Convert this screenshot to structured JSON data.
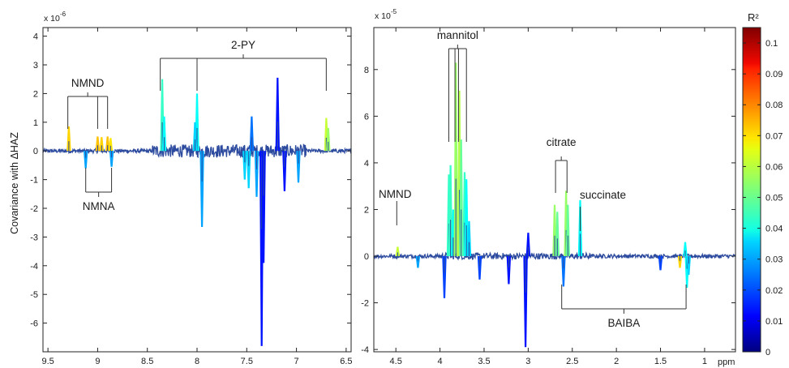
{
  "chart_data": [
    {
      "type": "line",
      "panel": "left",
      "ylabel": "Covariance with ΔHAZ",
      "y_scale_label": "x 10",
      "y_scale_exponent": "-6",
      "xlim": [
        9.55,
        6.45
      ],
      "ylim": [
        -7,
        4.3
      ],
      "x_reversed": true,
      "grid": false,
      "x_ticks": [
        9.5,
        9,
        8.5,
        8,
        7.5,
        7,
        6.5
      ],
      "x_tick_labels": [
        "9.5",
        "9",
        "8.5",
        "8",
        "7.5",
        "7",
        "6.5"
      ],
      "y_ticks": [
        -6,
        -5,
        -4,
        -3,
        -2,
        -1,
        0,
        1,
        2,
        3,
        4
      ],
      "y_tick_labels": [
        "-6",
        "-5",
        "-4",
        "-3",
        "-2",
        "-1",
        "0",
        "1",
        "2",
        "3",
        "4"
      ],
      "color_by": "R²",
      "peaks": [
        {
          "x": 9.29,
          "y": 0.85,
          "r2": 0.07
        },
        {
          "x": 9.0,
          "y": 0.5,
          "r2": 0.072
        },
        {
          "x": 8.96,
          "y": 0.48,
          "r2": 0.07
        },
        {
          "x": 8.9,
          "y": 0.5,
          "r2": 0.072
        },
        {
          "x": 8.87,
          "y": 0.45,
          "r2": 0.068
        },
        {
          "x": 9.12,
          "y": -0.6,
          "r2": 0.03
        },
        {
          "x": 8.86,
          "y": -0.55,
          "r2": 0.03
        },
        {
          "x": 8.35,
          "y": 2.5,
          "r2": 0.045
        },
        {
          "x": 8.33,
          "y": 1.2,
          "r2": 0.04
        },
        {
          "x": 8.0,
          "y": 2.0,
          "r2": 0.04
        },
        {
          "x": 8.02,
          "y": 1.0,
          "r2": 0.035
        },
        {
          "x": 7.95,
          "y": -2.65,
          "r2": 0.03
        },
        {
          "x": 7.52,
          "y": -1.0,
          "r2": 0.035
        },
        {
          "x": 7.48,
          "y": -1.3,
          "r2": 0.035
        },
        {
          "x": 7.45,
          "y": 1.2,
          "r2": 0.025
        },
        {
          "x": 7.4,
          "y": -1.6,
          "r2": 0.03
        },
        {
          "x": 7.35,
          "y": -6.8,
          "r2": 0.015
        },
        {
          "x": 7.33,
          "y": -3.9,
          "r2": 0.015
        },
        {
          "x": 7.19,
          "y": 2.55,
          "r2": 0.015
        },
        {
          "x": 7.12,
          "y": -1.4,
          "r2": 0.015
        },
        {
          "x": 6.98,
          "y": -1.1,
          "r2": 0.03
        },
        {
          "x": 6.7,
          "y": 1.15,
          "r2": 0.06
        },
        {
          "x": 6.68,
          "y": 0.8,
          "r2": 0.055
        }
      ],
      "annotations": [
        {
          "label": "NMND",
          "x": [
            9.3,
            9.0,
            8.9
          ],
          "side": "above"
        },
        {
          "label": "NMNA",
          "x": [
            9.12,
            8.86
          ],
          "side": "below"
        },
        {
          "label": "2-PY",
          "x": [
            8.37,
            8.0,
            6.7
          ],
          "side": "above"
        }
      ]
    },
    {
      "type": "line",
      "panel": "right",
      "ylabel": "",
      "y_scale_label": "x 10",
      "y_scale_exponent": "-5",
      "x_unit_label": "ppm",
      "xlim": [
        4.75,
        0.65
      ],
      "ylim": [
        -4.1,
        9.8
      ],
      "x_reversed": true,
      "grid": false,
      "x_ticks": [
        4.5,
        4,
        3.5,
        3,
        2.5,
        2,
        1.5,
        1
      ],
      "x_tick_labels": [
        "4.5",
        "4",
        "3.5",
        "3",
        "2.5",
        "2",
        "1.5",
        "1"
      ],
      "y_ticks": [
        -4,
        -2,
        0,
        2,
        4,
        6,
        8
      ],
      "y_tick_labels": [
        "-4",
        "-2",
        "0",
        "2",
        "4",
        "6",
        "8"
      ],
      "color_by": "R²",
      "peaks": [
        {
          "x": 4.48,
          "y": 0.4,
          "r2": 0.06
        },
        {
          "x": 4.25,
          "y": -0.5,
          "r2": 0.03
        },
        {
          "x": 3.9,
          "y": 3.5,
          "r2": 0.045
        },
        {
          "x": 3.88,
          "y": 3.9,
          "r2": 0.045
        },
        {
          "x": 3.85,
          "y": 2.0,
          "r2": 0.04
        },
        {
          "x": 3.82,
          "y": 8.3,
          "r2": 0.055
        },
        {
          "x": 3.78,
          "y": 7.1,
          "r2": 0.058
        },
        {
          "x": 3.76,
          "y": 5.0,
          "r2": 0.05
        },
        {
          "x": 3.72,
          "y": 3.6,
          "r2": 0.045
        },
        {
          "x": 3.7,
          "y": 3.3,
          "r2": 0.04
        },
        {
          "x": 3.67,
          "y": 1.5,
          "r2": 0.035
        },
        {
          "x": 3.95,
          "y": -1.8,
          "r2": 0.02
        },
        {
          "x": 3.55,
          "y": -1.0,
          "r2": 0.02
        },
        {
          "x": 3.22,
          "y": -1.2,
          "r2": 0.015
        },
        {
          "x": 3.03,
          "y": -3.9,
          "r2": 0.015
        },
        {
          "x": 3.0,
          "y": 1.0,
          "r2": 0.015
        },
        {
          "x": 2.7,
          "y": 2.2,
          "r2": 0.055
        },
        {
          "x": 2.67,
          "y": 1.9,
          "r2": 0.05
        },
        {
          "x": 2.57,
          "y": 2.8,
          "r2": 0.055
        },
        {
          "x": 2.55,
          "y": 2.2,
          "r2": 0.05
        },
        {
          "x": 2.41,
          "y": 2.4,
          "r2": 0.04
        },
        {
          "x": 2.6,
          "y": -1.3,
          "r2": 0.025
        },
        {
          "x": 1.5,
          "y": -0.6,
          "r2": 0.02
        },
        {
          "x": 1.22,
          "y": 0.6,
          "r2": 0.04
        },
        {
          "x": 1.2,
          "y": -1.35,
          "r2": 0.04
        },
        {
          "x": 1.18,
          "y": -0.8,
          "r2": 0.035
        },
        {
          "x": 1.28,
          "y": -0.5,
          "r2": 0.07
        }
      ],
      "annotations": [
        {
          "label": "NMND",
          "x": [
            4.49
          ],
          "side": "above"
        },
        {
          "label": "mannitol",
          "x": [
            3.9,
            3.83,
            3.79,
            3.7
          ],
          "side": "above"
        },
        {
          "label": "citrate",
          "x": [
            2.69,
            2.56
          ],
          "side": "above"
        },
        {
          "label": "succinate",
          "x": [
            2.41
          ],
          "side": "above"
        },
        {
          "label": "BAIBA",
          "x": [
            2.62,
            1.21
          ],
          "side": "below"
        }
      ]
    }
  ],
  "colorbar": {
    "title": "R²",
    "range": [
      0,
      0.105
    ],
    "tick_labels": [
      "0",
      "0.01",
      "0.02",
      "0.03",
      "0.04",
      "0.05",
      "0.06",
      "0.07",
      "0.08",
      "0.09",
      "0.1"
    ],
    "tick_values": [
      0,
      0.01,
      0.02,
      0.03,
      0.04,
      0.05,
      0.06,
      0.07,
      0.08,
      0.09,
      0.1
    ],
    "colormap": "jet",
    "baseline_color": "#2c4a9e"
  }
}
